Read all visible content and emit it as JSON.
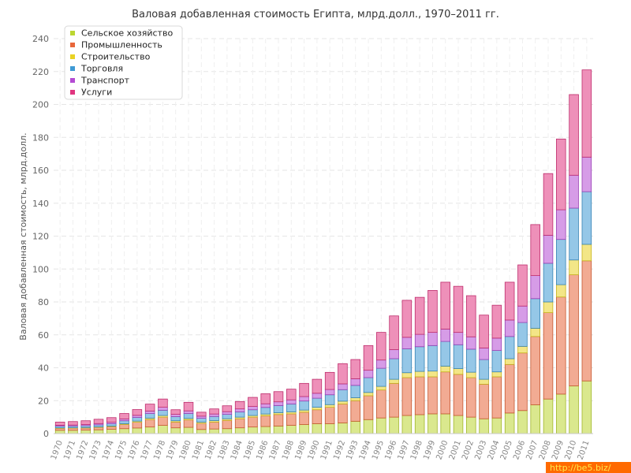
{
  "chart_data": {
    "type": "bar",
    "stacked": true,
    "title": "Валовая добавленная стоимость Египта, млрд.долл., 1970–2011 гг.",
    "ylabel": "Валовая добавленная стоимость, млрд.долл.",
    "xlabel": "",
    "ylim": [
      0,
      240
    ],
    "yticks": [
      0,
      20,
      40,
      60,
      80,
      100,
      120,
      140,
      160,
      180,
      200,
      220,
      240
    ],
    "grid": true,
    "legend_position": "top-left",
    "categories": [
      "1970",
      "1971",
      "1972",
      "1973",
      "1974",
      "1975",
      "1976",
      "1977",
      "1978",
      "1979",
      "1980",
      "1981",
      "1982",
      "1983",
      "1984",
      "1985",
      "1986",
      "1987",
      "1988",
      "1989",
      "1990",
      "1991",
      "1992",
      "1993",
      "1994",
      "1995",
      "1996",
      "1997",
      "1998",
      "1999",
      "2000",
      "2001",
      "2002",
      "2003",
      "2004",
      "2005",
      "2006",
      "2007",
      "2008",
      "2009",
      "2010",
      "2011"
    ],
    "series": [
      {
        "name": "Сельское хозяйство",
        "color": "#bcd631",
        "values": [
          2.0,
          2.0,
          2.1,
          2.3,
          2.6,
          3.0,
          3.4,
          4.0,
          5.0,
          3.5,
          3.8,
          2.5,
          2.8,
          3.0,
          3.5,
          4.0,
          4.3,
          4.6,
          5.0,
          5.5,
          6.0,
          6.0,
          6.5,
          7.5,
          8.5,
          9.5,
          10.0,
          11.0,
          11.5,
          12.0,
          12.0,
          11.0,
          10.0,
          9.0,
          9.5,
          12.5,
          14.0,
          17.5,
          21.0,
          24.0,
          29.0,
          32.0
        ]
      },
      {
        "name": "Промышленность",
        "color": "#e8673a",
        "values": [
          1.2,
          1.3,
          1.3,
          1.5,
          1.6,
          2.5,
          3.5,
          4.5,
          5.0,
          3.5,
          4.5,
          3.7,
          4.2,
          5.0,
          5.5,
          6.0,
          6.5,
          7.0,
          7.0,
          7.5,
          8.5,
          10.0,
          11.5,
          12.5,
          14.5,
          17.0,
          20.5,
          23.0,
          23.0,
          22.5,
          25.5,
          25.0,
          24.0,
          21.0,
          25.0,
          29.5,
          35.0,
          41.5,
          52.5,
          59.0,
          67.5,
          73.0
        ]
      },
      {
        "name": "Строительство",
        "color": "#e9d224",
        "values": [
          0.3,
          0.3,
          0.3,
          0.3,
          0.4,
          0.5,
          0.7,
          0.9,
          1.0,
          0.8,
          0.9,
          0.8,
          0.9,
          1.0,
          1.0,
          1.0,
          1.1,
          1.1,
          1.2,
          1.3,
          1.5,
          1.6,
          1.7,
          1.8,
          2.0,
          2.2,
          2.5,
          3.0,
          3.3,
          3.5,
          3.5,
          3.5,
          3.3,
          3.0,
          3.0,
          3.5,
          4.0,
          5.0,
          6.5,
          7.5,
          9.0,
          10.0
        ]
      },
      {
        "name": "Торговля",
        "color": "#3f9ad4",
        "values": [
          1.0,
          1.0,
          1.1,
          1.2,
          1.4,
          1.8,
          2.2,
          2.8,
          3.2,
          2.5,
          3.0,
          2.3,
          2.5,
          2.7,
          3.2,
          3.5,
          4.0,
          4.3,
          4.8,
          5.5,
          5.5,
          6.0,
          7.0,
          7.5,
          9.0,
          11.0,
          12.5,
          14.5,
          15.0,
          15.5,
          15.0,
          14.5,
          14.0,
          12.0,
          13.0,
          13.5,
          14.5,
          18.0,
          23.5,
          27.5,
          31.5,
          32.0
        ]
      },
      {
        "name": "Транспорт",
        "color": "#b44bd3",
        "values": [
          0.6,
          0.6,
          0.7,
          0.8,
          0.9,
          1.1,
          1.3,
          1.5,
          1.8,
          1.4,
          1.6,
          1.3,
          1.5,
          1.6,
          1.8,
          2.0,
          2.2,
          2.3,
          2.5,
          2.7,
          3.0,
          3.2,
          3.5,
          4.0,
          4.5,
          5.0,
          5.5,
          7.0,
          7.5,
          8.0,
          7.5,
          7.5,
          7.5,
          7.0,
          7.5,
          10.0,
          10.0,
          14.0,
          17.0,
          18.0,
          20.0,
          21.0
        ]
      },
      {
        "name": "Услуги",
        "color": "#e0357f",
        "values": [
          1.9,
          2.1,
          2.3,
          2.6,
          2.8,
          3.3,
          3.5,
          4.2,
          5.0,
          2.8,
          5.2,
          2.4,
          3.1,
          3.6,
          4.5,
          5.5,
          6.1,
          6.2,
          6.5,
          8.0,
          8.5,
          10.4,
          12.3,
          11.7,
          15.0,
          16.8,
          20.5,
          22.5,
          22.5,
          25.5,
          28.5,
          28.0,
          25.0,
          20.0,
          20.0,
          23.0,
          25.0,
          31.0,
          37.5,
          43.0,
          49.0,
          53.0
        ]
      }
    ]
  },
  "watermark": "http://be5.biz/"
}
